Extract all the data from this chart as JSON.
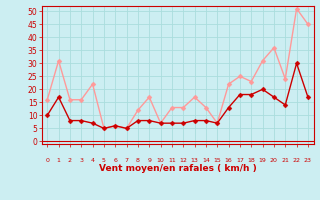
{
  "x": [
    0,
    1,
    2,
    3,
    4,
    5,
    6,
    7,
    8,
    9,
    10,
    11,
    12,
    13,
    14,
    15,
    16,
    17,
    18,
    19,
    20,
    21,
    22,
    23
  ],
  "wind_avg": [
    10,
    17,
    8,
    8,
    7,
    5,
    6,
    5,
    8,
    8,
    7,
    7,
    7,
    8,
    8,
    7,
    13,
    18,
    18,
    20,
    17,
    14,
    30,
    17
  ],
  "wind_gust": [
    16,
    31,
    16,
    16,
    22,
    5,
    6,
    5,
    12,
    17,
    7,
    13,
    13,
    17,
    13,
    7,
    22,
    25,
    23,
    31,
    36,
    24,
    51,
    45
  ],
  "bg_color": "#cceef2",
  "grid_color": "#aadddd",
  "avg_color": "#cc0000",
  "gust_color": "#ff9999",
  "xlabel": "Vent moyen/en rafales ( km/h )",
  "xlabel_color": "#cc0000",
  "ylabel_ticks": [
    0,
    5,
    10,
    15,
    20,
    25,
    30,
    35,
    40,
    45,
    50
  ],
  "ylim": [
    -1,
    52
  ],
  "xlim": [
    -0.5,
    23.5
  ],
  "tick_color": "#cc0000",
  "spine_color": "#cc0000",
  "line_width": 1.0,
  "marker_size": 2.5,
  "ytick_fontsize": 5.5,
  "xtick_fontsize": 4.5,
  "xlabel_fontsize": 6.5
}
